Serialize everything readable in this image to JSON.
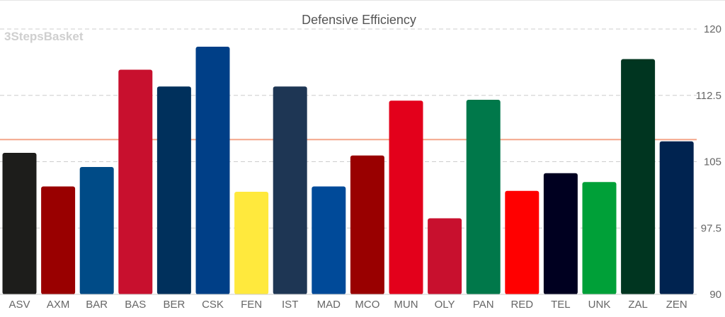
{
  "watermark": "3StepsBasket",
  "chart_data": {
    "type": "bar",
    "title": "Defensive Efficiency",
    "xlabel": "",
    "ylabel": "",
    "categories": [
      "ASV",
      "AXM",
      "BAR",
      "BAS",
      "BER",
      "CSK",
      "FEN",
      "IST",
      "MAD",
      "MCO",
      "MUN",
      "OLY",
      "PAN",
      "RED",
      "TEL",
      "UNK",
      "ZAL",
      "ZEN"
    ],
    "values": [
      106.0,
      102.2,
      104.4,
      115.4,
      113.5,
      118.0,
      101.6,
      113.5,
      102.2,
      105.7,
      111.9,
      98.6,
      112.0,
      101.7,
      103.7,
      102.7,
      116.6,
      107.3
    ],
    "colors": [
      "#1d1d1b",
      "#990000",
      "#004b87",
      "#c8102e",
      "#00305c",
      "#003f87",
      "#ffe93d",
      "#1e3654",
      "#004a99",
      "#990000",
      "#e3001b",
      "#c8102e",
      "#00784a",
      "#ff0000",
      "#000020",
      "#00a038",
      "#003520",
      "#002350"
    ],
    "ylim": [
      90,
      120
    ],
    "yticks": [
      90,
      97.5,
      105,
      112.5,
      120
    ],
    "ytick_labels": [
      "90",
      "97.5",
      "105",
      "112.5",
      "120"
    ],
    "reference_line": 107.5,
    "reference_line_color": "#f4a58a",
    "grid": true,
    "y_axis_position": "right"
  }
}
